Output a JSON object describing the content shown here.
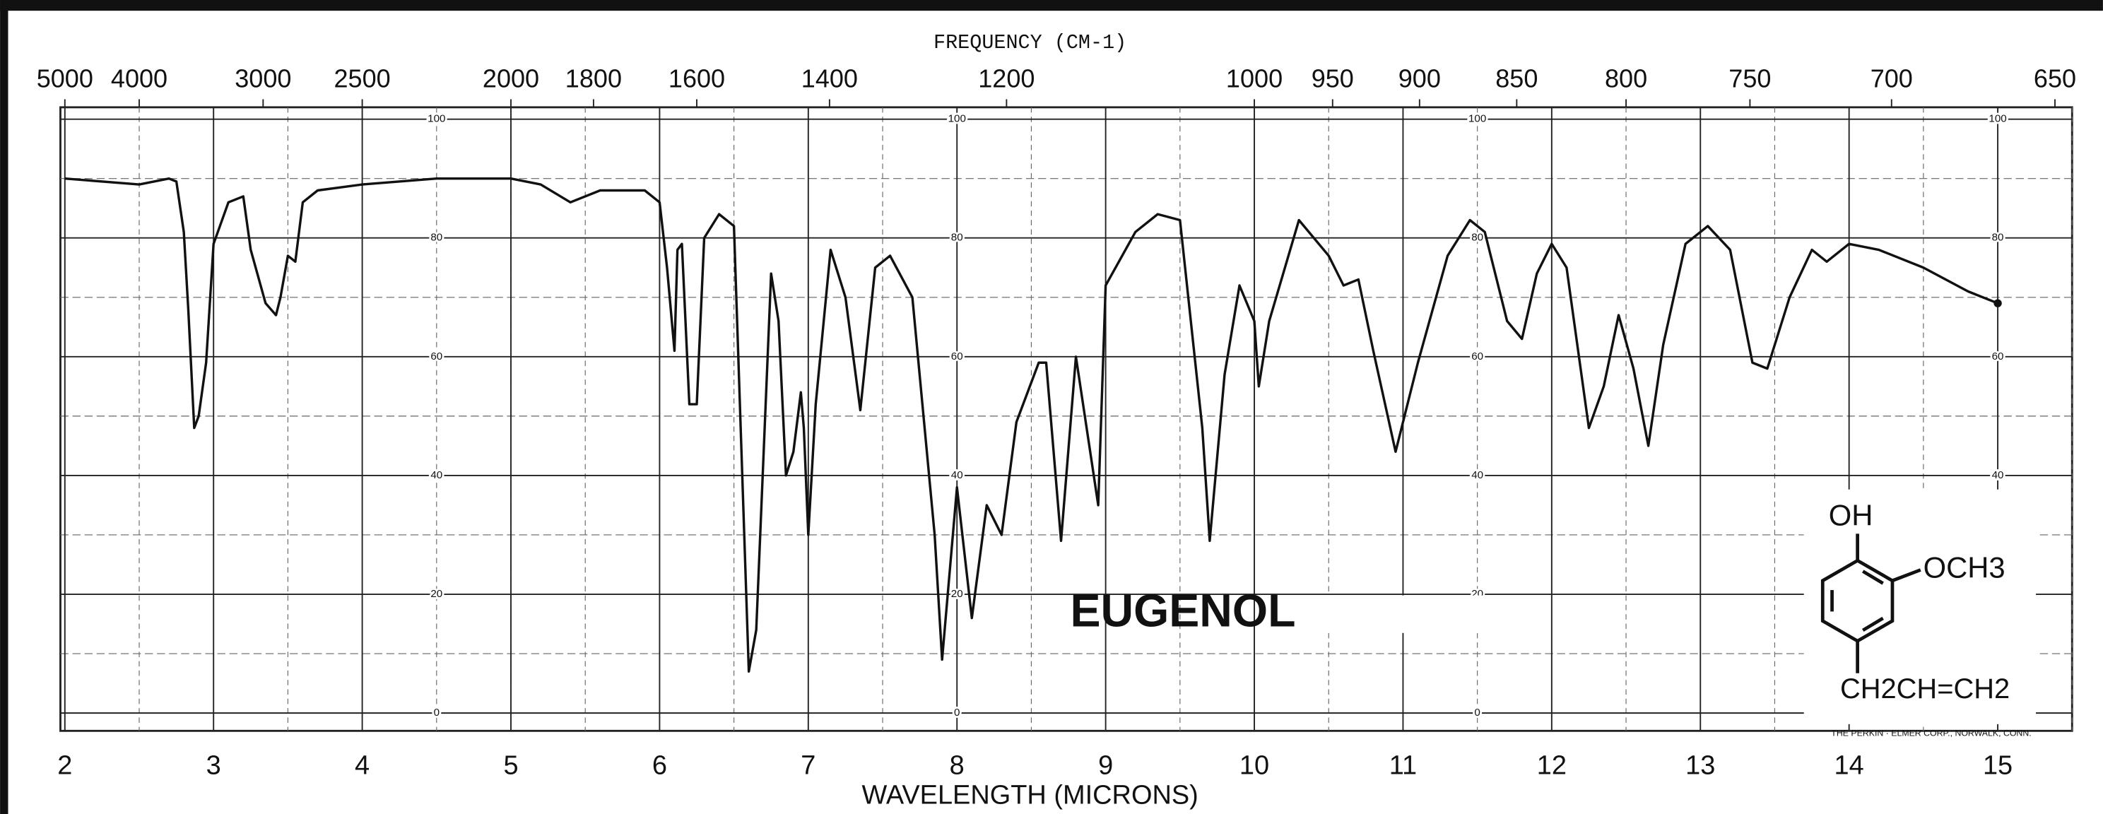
{
  "chart_data": {
    "type": "line",
    "title": "FREQUENCY (CM-1)",
    "x_label": "WAVELENGTH (MICRONS)",
    "compound": "EUGENOL",
    "structure_labels": [
      "OH",
      "OCH3",
      "CH2CH=CH2"
    ],
    "footer": "THE PERKIN · ELMER CORP., NORWALK, CONN.",
    "color": "#111111",
    "x": [
      2.0,
      2.5,
      2.7,
      2.75,
      2.8,
      2.83,
      2.87,
      2.9,
      2.95,
      3.0,
      3.1,
      3.2,
      3.25,
      3.35,
      3.42,
      3.45,
      3.5,
      3.55,
      3.6,
      3.7,
      4.0,
      4.5,
      5.0,
      5.2,
      5.4,
      5.6,
      5.9,
      6.0,
      6.05,
      6.1,
      6.12,
      6.15,
      6.2,
      6.25,
      6.3,
      6.4,
      6.5,
      6.6,
      6.65,
      6.75,
      6.8,
      6.85,
      6.9,
      6.95,
      6.97,
      7.0,
      7.05,
      7.15,
      7.25,
      7.35,
      7.45,
      7.55,
      7.7,
      7.85,
      7.9,
      8.0,
      8.1,
      8.2,
      8.3,
      8.4,
      8.55,
      8.6,
      8.7,
      8.8,
      8.95,
      9.0,
      9.2,
      9.35,
      9.5,
      9.65,
      9.7,
      9.8,
      9.9,
      10.0,
      10.03,
      10.1,
      10.3,
      10.5,
      10.6,
      10.7,
      10.8,
      10.95,
      11.1,
      11.3,
      11.45,
      11.55,
      11.7,
      11.8,
      11.9,
      12.0,
      12.1,
      12.25,
      12.35,
      12.45,
      12.55,
      12.65,
      12.75,
      12.9,
      13.05,
      13.2,
      13.35,
      13.45,
      13.6,
      13.75,
      13.85,
      14.0,
      14.2,
      14.5,
      14.8,
      15.0
    ],
    "values": [
      90,
      89,
      90,
      89.5,
      81,
      68,
      48,
      50,
      59,
      79,
      86,
      87,
      78,
      69,
      67,
      70,
      77,
      76,
      86,
      88,
      89,
      90,
      90,
      89,
      86,
      88,
      88,
      86,
      75,
      61,
      78,
      79,
      52,
      52,
      80,
      84,
      82,
      7,
      14,
      74,
      66,
      40,
      44,
      54,
      48,
      30,
      52,
      78,
      70,
      51,
      75,
      77,
      70,
      30,
      9,
      38,
      16,
      35,
      30,
      49,
      59,
      59,
      29,
      60,
      35,
      72,
      81,
      84,
      83,
      48,
      29,
      57,
      72,
      66,
      55,
      66,
      83,
      77,
      72,
      73,
      61,
      44,
      59,
      77,
      83,
      81,
      66,
      63,
      74,
      79,
      75,
      48,
      55,
      67,
      58,
      45,
      62,
      79,
      82,
      78,
      59,
      58,
      70,
      78,
      76,
      79,
      78,
      75,
      71,
      69
    ],
    "xlim": [
      1.97,
      15.5
    ],
    "xticks": [
      2,
      3,
      4,
      5,
      6,
      7,
      8,
      9,
      10,
      11,
      12,
      13,
      14,
      15
    ],
    "x2ticks": [
      5000,
      4000,
      3000,
      2500,
      2000,
      1800,
      1600,
      1400,
      1200,
      1000,
      950,
      900,
      850,
      800,
      750,
      700,
      650
    ],
    "ylim": [
      -3,
      102
    ],
    "yticks": [
      0,
      20,
      40,
      60,
      80,
      100
    ],
    "grid": true
  }
}
